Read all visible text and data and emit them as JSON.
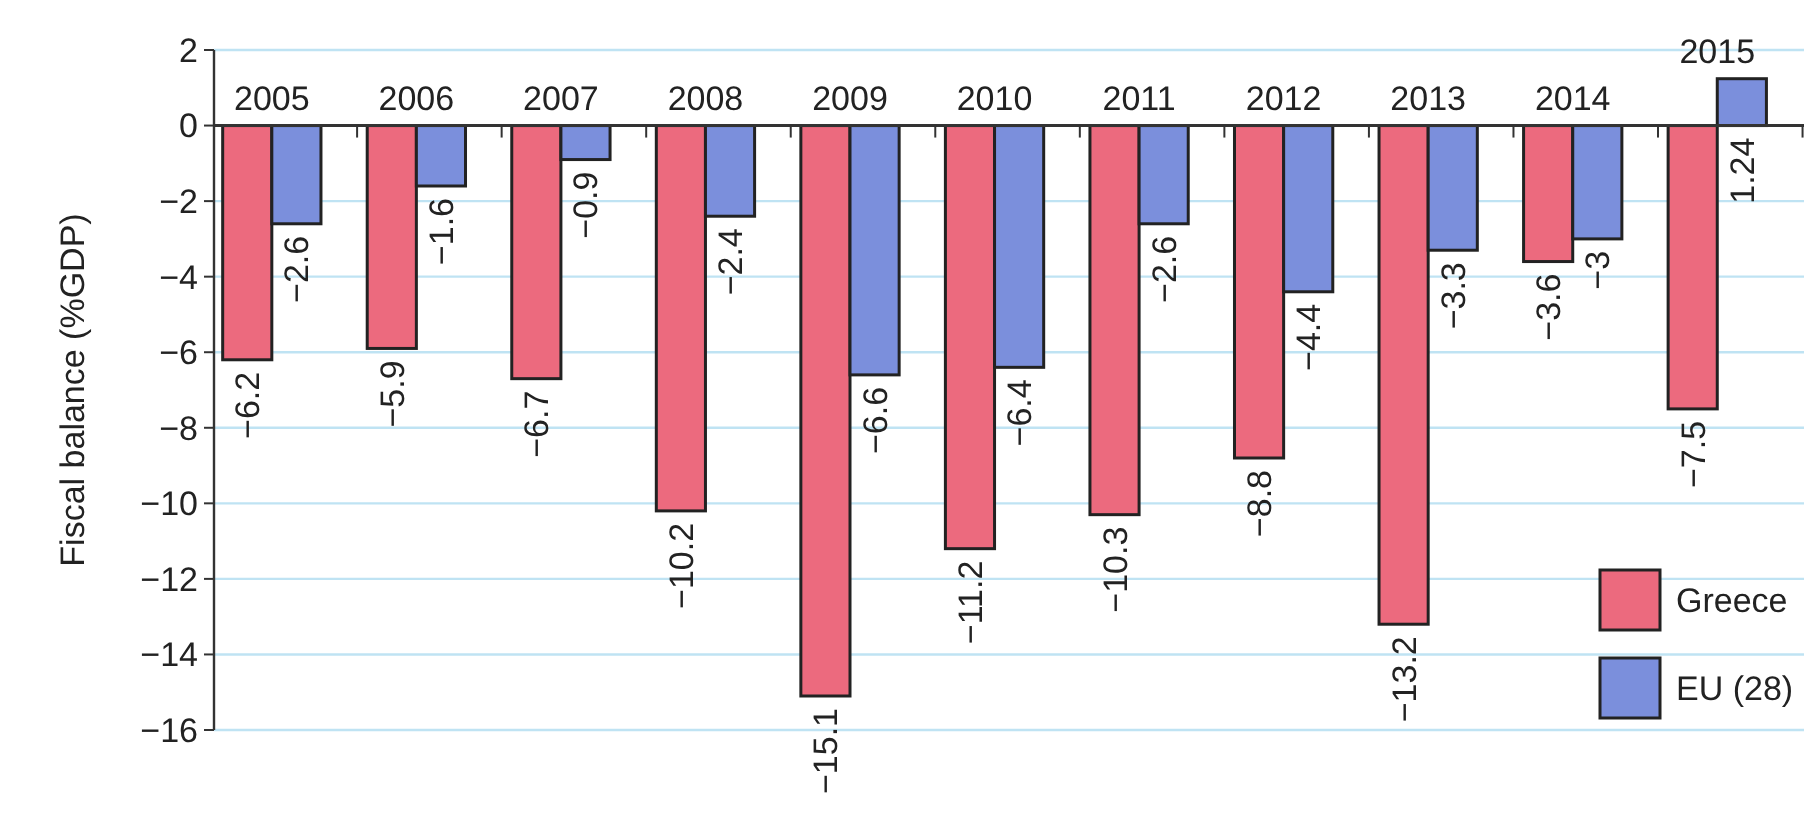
{
  "chart_data": {
    "type": "bar",
    "ylabel": "Fiscal balance (%GDP)",
    "categories": [
      "2005",
      "2006",
      "2007",
      "2008",
      "2009",
      "2010",
      "2011",
      "2012",
      "2013",
      "2014",
      "2015"
    ],
    "series": [
      {
        "name": "Greece",
        "color": "#ec6a7e",
        "values": [
          -6.2,
          -5.9,
          -6.7,
          -10.2,
          -15.1,
          -11.2,
          -10.3,
          -8.8,
          -13.2,
          -3.6,
          -7.5
        ],
        "value_labels": [
          "−6.2",
          "−5.9",
          "−6.7",
          "−10.2",
          "−15.1",
          "−11.2",
          "−10.3",
          "−8.8",
          "−13.2",
          "−3.6",
          "−7.5"
        ]
      },
      {
        "name": "EU (28)",
        "color": "#7b8fdc",
        "values": [
          -2.6,
          -1.6,
          -0.9,
          -2.4,
          -6.6,
          -6.4,
          -2.6,
          -4.4,
          -3.3,
          -3,
          1.24
        ],
        "value_labels": [
          "−2.6",
          "−1.6",
          "−0.9",
          "−2.4",
          "−6.6",
          "−6.4",
          "−2.6",
          "−4.4",
          "−3.3",
          "−3",
          "1.24"
        ]
      }
    ],
    "ylim": [
      -16,
      2
    ],
    "yticks": [
      2,
      0,
      {
        "value": -2,
        "label": "−2"
      },
      {
        "value": -4,
        "label": "−4"
      },
      {
        "value": -6,
        "label": "−6"
      },
      {
        "value": -8,
        "label": "−8"
      },
      {
        "value": -10,
        "label": "−10"
      },
      {
        "value": -12,
        "label": "−12"
      },
      {
        "value": -14,
        "label": "−14"
      },
      {
        "value": -16,
        "label": "−16"
      }
    ],
    "grid": "y",
    "legend": "bottom right"
  }
}
